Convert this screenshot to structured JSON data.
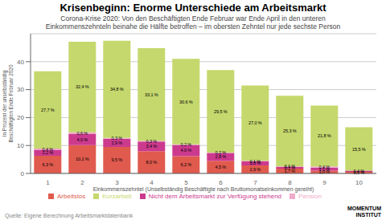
{
  "chart_data": {
    "type": "bar",
    "stacked": true,
    "data_labels": true,
    "grid": true,
    "title": "Krisenbeginn: Enorme Unterschiede am Arbeitsmarkt",
    "subtitle": [
      "Corona-Krise 2020: Von den Beschäftigten Ende Februar war Ende April in den unteren",
      "Einkommenszehnteln beinahe die Hälfte betroffen – im obersten Zehntel nur jede sechste Person"
    ],
    "x_label": "Einkommenszehntel (Unselbständig Beschäftigte nach Bruttomonatseinkommen gereiht)",
    "y_label": "In Prozent der unselbständig Beschäftigten Ende Februar 2020",
    "annotations": [
      "Quelle: Eigene Berechnung Arbeitsmarktdatenbank",
      "MOMENTUM\nINSTITUT"
    ],
    "categories": [
      "1",
      "2",
      "3",
      "4",
      "5",
      "6",
      "7",
      "8",
      "9",
      "10"
    ],
    "series": [
      {
        "name": "Arbeitslos",
        "color": "#e05a4e",
        "values": [
          6.3,
          10.1,
          9.5,
          8.0,
          6.2,
          4.5,
          2.9,
          1.7,
          1.0,
          0.6
        ],
        "value_labels": [
          "6,3 %",
          "10,1 %",
          "9,5 %",
          "8,0 %",
          "6,2 %",
          "4,5 %",
          "2,9 %",
          "1,7 %",
          "1,0 %",
          "0,6 %"
        ]
      },
      {
        "name": "Nicht dem Arbeitsmarkt zur Verfügung stehend",
        "color": "#cc3a8e",
        "values": [
          2.2,
          4.0,
          2.9,
          3.4,
          4.0,
          2.8,
          1.5,
          0.7,
          1.1,
          0.4
        ],
        "value_labels": [
          "2,2 %",
          "4,0 %",
          "2,9 %",
          "3,4 %",
          "4,0 %",
          "2,8 %",
          "1,5 %",
          "0,7 %",
          "1,1 %",
          "0,4 %"
        ]
      },
      {
        "name": "Pension",
        "color": "#f0aac8",
        "values": [
          0.4,
          0.6,
          0.3,
          0.3,
          0.2,
          0.2,
          0.1,
          0.1,
          0.4,
          0.0
        ],
        "value_labels": [
          "0,4 %",
          "0,6 %",
          "0,3 %",
          "0,3 %",
          "0,2 %",
          "0,2 %",
          "0,1 %",
          "0,1 %",
          "0,4 %",
          null
        ]
      },
      {
        "name": "Kurzarbeit",
        "color": "#c5d86d",
        "values": [
          27.7,
          32.4,
          34.8,
          33.1,
          30.6,
          29.5,
          27.0,
          25.3,
          21.8,
          15.5
        ],
        "value_labels": [
          "27,7 %",
          "32,4 %",
          "34,8 %",
          "33,1 %",
          "30,6 %",
          "29,5 %",
          "27,0 %",
          "25,3 %",
          "21,8 %",
          "15,5 %"
        ]
      }
    ],
    "ylim": [
      0,
      50
    ],
    "yticks": [
      0,
      10,
      20,
      30,
      40
    ]
  }
}
